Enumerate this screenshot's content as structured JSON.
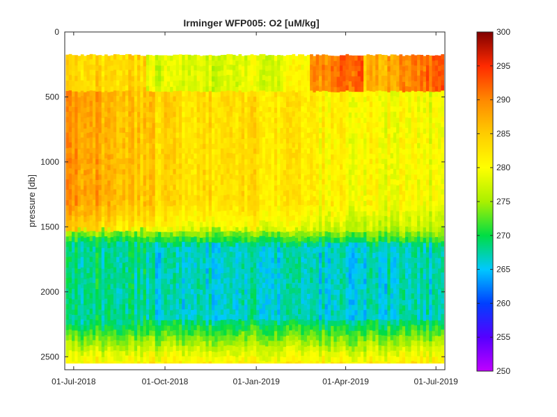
{
  "chart_data": {
    "type": "heatmap",
    "title": "Irminger WFP005:  O2 [uM/kg]",
    "xlabel": "",
    "ylabel": "pressure [db]",
    "x_ticks": [
      "01-Jul-2018",
      "01-Oct-2018",
      "01-Jan-2019",
      "01-Apr-2019",
      "01-Jul-2019"
    ],
    "x_tick_days": [
      0,
      92,
      184,
      274,
      365
    ],
    "x_range_days": [
      -9,
      374
    ],
    "y_ticks": [
      0,
      500,
      1000,
      1500,
      2000,
      2500
    ],
    "ylim": [
      0,
      2600
    ],
    "y_reversed": true,
    "colorbar": {
      "label": "",
      "range": [
        250,
        300
      ],
      "ticks": [
        250,
        255,
        260,
        265,
        270,
        275,
        280,
        285,
        290,
        295,
        300
      ],
      "colormap": "jet"
    },
    "data_depth_range": [
      170,
      2550
    ],
    "profile_summary": [
      {
        "layer": "near-surface 170-450 db",
        "o2_range": [
          270,
          298
        ]
      },
      {
        "layer": "upper 450-1500 db",
        "o2_range": [
          280,
          291
        ]
      },
      {
        "layer": "transition 1500-1600 db",
        "o2_range": [
          270,
          276
        ]
      },
      {
        "layer": "deep 1600-2200 db",
        "o2_range": [
          264,
          268
        ]
      },
      {
        "layer": "bottom 2200-2550 db",
        "o2_range": [
          270,
          285
        ]
      }
    ]
  }
}
